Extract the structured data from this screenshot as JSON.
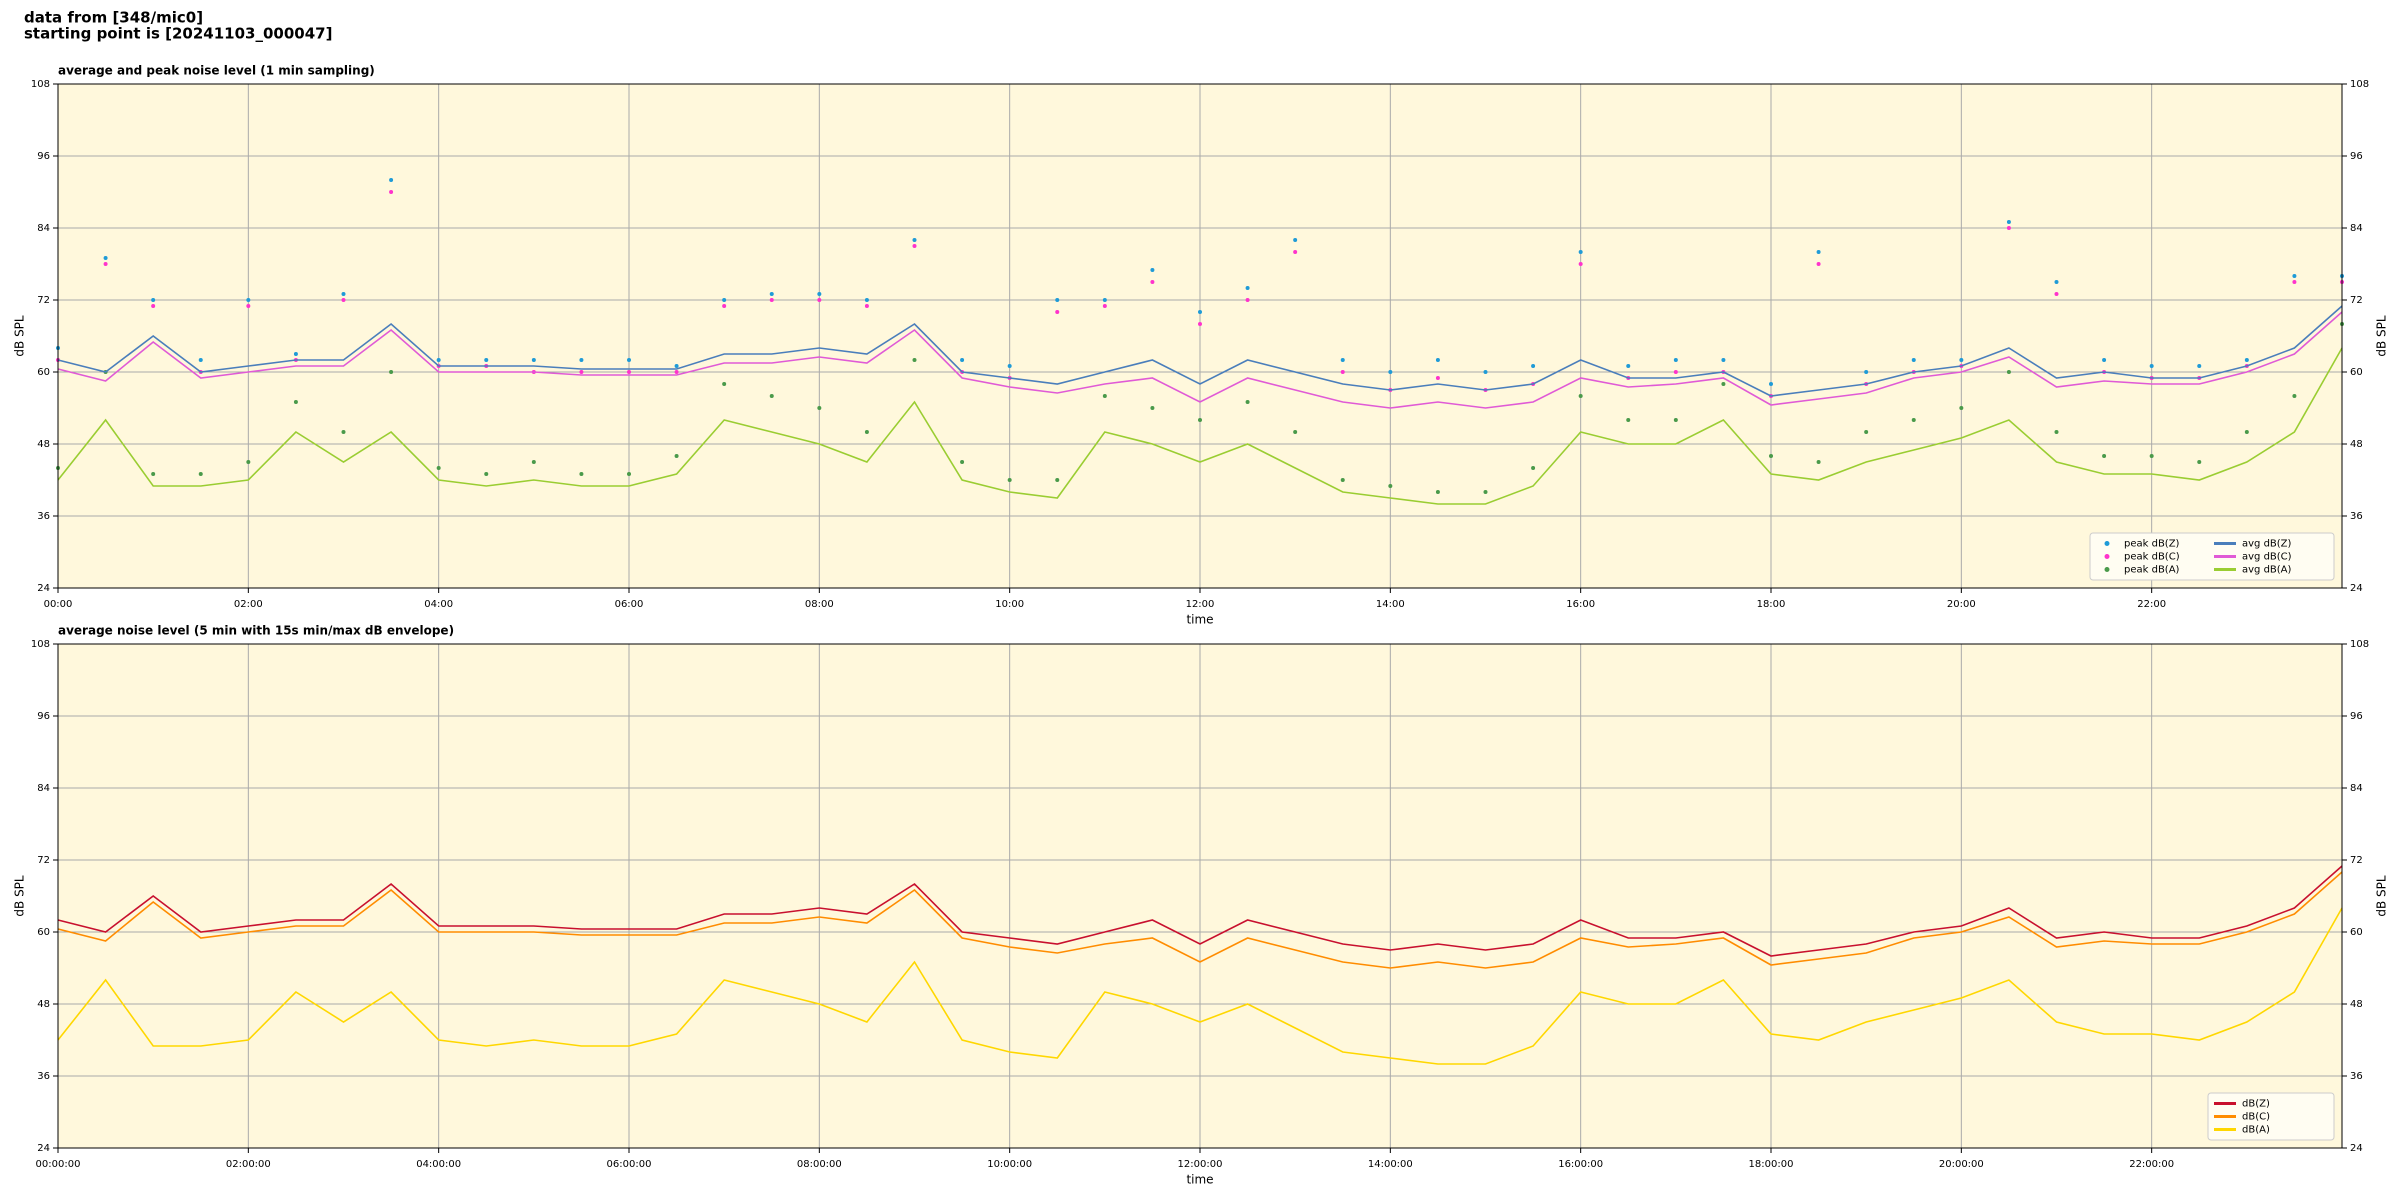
{
  "header": {
    "line1": "data from [348/mic0]",
    "line2": "starting point is [20241103_000047]"
  },
  "chart_data": [
    {
      "type": "line",
      "title": "average and peak noise level (1 min sampling)",
      "xlabel": "time",
      "ylabel": "dB SPL",
      "xlim": [
        0,
        24
      ],
      "xticks": [
        {
          "value": 0,
          "label": "00:00"
        },
        {
          "value": 2,
          "label": "02:00"
        },
        {
          "value": 4,
          "label": "04:00"
        },
        {
          "value": 6,
          "label": "06:00"
        },
        {
          "value": 8,
          "label": "08:00"
        },
        {
          "value": 10,
          "label": "10:00"
        },
        {
          "value": 12,
          "label": "12:00"
        },
        {
          "value": 14,
          "label": "14:00"
        },
        {
          "value": 16,
          "label": "16:00"
        },
        {
          "value": 18,
          "label": "18:00"
        },
        {
          "value": 20,
          "label": "20:00"
        },
        {
          "value": 22,
          "label": "22:00"
        }
      ],
      "ylim": [
        24,
        108
      ],
      "yticks": [
        24,
        36,
        48,
        60,
        72,
        84,
        96,
        108
      ],
      "grid": true,
      "legend": "lower right",
      "legend_ncol": 2,
      "x": [
        0,
        0.5,
        1,
        1.5,
        2,
        2.5,
        3,
        3.5,
        4,
        4.5,
        5,
        5.5,
        6,
        6.5,
        7,
        7.5,
        8,
        8.5,
        9,
        9.5,
        10,
        10.5,
        11,
        11.5,
        12,
        12.5,
        13,
        13.5,
        14,
        14.5,
        15,
        15.5,
        16,
        16.5,
        17,
        17.5,
        18,
        18.5,
        19,
        19.5,
        20,
        20.5,
        21,
        21.5,
        22,
        22.5,
        23,
        23.5,
        24
      ],
      "series": [
        {
          "name": "peak dB(Z)",
          "kind": "scatter",
          "color": "#1f9bd7",
          "values": [
            64,
            79,
            72,
            62,
            72,
            63,
            73,
            92,
            62,
            62,
            62,
            62,
            62,
            61,
            72,
            73,
            73,
            72,
            82,
            62,
            61,
            72,
            72,
            77,
            70,
            74,
            82,
            62,
            60,
            62,
            60,
            61,
            80,
            61,
            62,
            62,
            58,
            80,
            60,
            62,
            62,
            85,
            75,
            62,
            61,
            61,
            62,
            76,
            76
          ]
        },
        {
          "name": "peak dB(C)",
          "kind": "scatter",
          "color": "#ff33cc",
          "values": [
            62,
            78,
            71,
            60,
            71,
            62,
            72,
            90,
            61,
            61,
            60,
            60,
            60,
            60,
            71,
            72,
            72,
            71,
            81,
            60,
            59,
            70,
            71,
            75,
            68,
            72,
            80,
            60,
            57,
            59,
            57,
            58,
            78,
            59,
            60,
            60,
            56,
            78,
            58,
            60,
            61,
            84,
            73,
            60,
            59,
            59,
            61,
            75,
            75
          ]
        },
        {
          "name": "peak dB(A)",
          "kind": "scatter",
          "color": "#4a9a4a",
          "values": [
            44,
            60,
            43,
            43,
            45,
            55,
            50,
            60,
            44,
            43,
            45,
            43,
            43,
            46,
            58,
            56,
            54,
            50,
            62,
            45,
            42,
            42,
            56,
            54,
            52,
            55,
            50,
            42,
            41,
            40,
            40,
            44,
            56,
            52,
            52,
            58,
            46,
            45,
            50,
            52,
            54,
            60,
            50,
            46,
            46,
            45,
            50,
            56,
            68
          ]
        },
        {
          "name": "avg dB(Z)",
          "kind": "line",
          "color": "#4a7ebb",
          "values": [
            62,
            60,
            66,
            60,
            61,
            62,
            62,
            68,
            61,
            61,
            61,
            60.5,
            60.5,
            60.5,
            63,
            63,
            64,
            63,
            68,
            60,
            59,
            58,
            60,
            62,
            58,
            62,
            60,
            58,
            57,
            58,
            57,
            58,
            62,
            59,
            59,
            60,
            56,
            57,
            58,
            60,
            61,
            64,
            59,
            60,
            59,
            59,
            61,
            64,
            71
          ]
        },
        {
          "name": "avg dB(C)",
          "kind": "line",
          "color": "#e05ad6",
          "values": [
            60.5,
            58.5,
            65,
            59,
            60,
            61,
            61,
            67,
            60,
            60,
            60,
            59.5,
            59.5,
            59.5,
            61.5,
            61.5,
            62.5,
            61.5,
            67,
            59,
            57.5,
            56.5,
            58,
            59,
            55,
            59,
            57,
            55,
            54,
            55,
            54,
            55,
            59,
            57.5,
            58,
            59,
            54.5,
            55.5,
            56.5,
            59,
            60,
            62.5,
            57.5,
            58.5,
            58,
            58,
            60,
            63,
            70
          ]
        },
        {
          "name": "avg dB(A)",
          "kind": "line",
          "color": "#9acd32",
          "values": [
            42,
            52,
            41,
            41,
            42,
            50,
            45,
            50,
            42,
            41,
            42,
            41,
            41,
            43,
            52,
            50,
            48,
            45,
            55,
            42,
            40,
            39,
            50,
            48,
            45,
            48,
            44,
            40,
            39,
            38,
            38,
            41,
            50,
            48,
            48,
            52,
            43,
            42,
            45,
            47,
            49,
            52,
            45,
            43,
            43,
            42,
            45,
            50,
            64
          ]
        }
      ]
    },
    {
      "type": "line",
      "title": "average noise level (5 min with 15s min/max dB envelope)",
      "xlabel": "time",
      "ylabel": "dB SPL",
      "xlim": [
        0,
        24
      ],
      "xticks": [
        {
          "value": 0,
          "label": "00:00:00"
        },
        {
          "value": 2,
          "label": "02:00:00"
        },
        {
          "value": 4,
          "label": "04:00:00"
        },
        {
          "value": 6,
          "label": "06:00:00"
        },
        {
          "value": 8,
          "label": "08:00:00"
        },
        {
          "value": 10,
          "label": "10:00:00"
        },
        {
          "value": 12,
          "label": "12:00:00"
        },
        {
          "value": 14,
          "label": "14:00:00"
        },
        {
          "value": 16,
          "label": "16:00:00"
        },
        {
          "value": 18,
          "label": "18:00:00"
        },
        {
          "value": 20,
          "label": "20:00:00"
        },
        {
          "value": 22,
          "label": "22:00:00"
        }
      ],
      "ylim": [
        24,
        108
      ],
      "yticks": [
        24,
        36,
        48,
        60,
        72,
        84,
        96,
        108
      ],
      "grid": true,
      "legend": "lower right",
      "legend_ncol": 1,
      "x": [
        0,
        0.5,
        1,
        1.5,
        2,
        2.5,
        3,
        3.5,
        4,
        4.5,
        5,
        5.5,
        6,
        6.5,
        7,
        7.5,
        8,
        8.5,
        9,
        9.5,
        10,
        10.5,
        11,
        11.5,
        12,
        12.5,
        13,
        13.5,
        14,
        14.5,
        15,
        15.5,
        16,
        16.5,
        17,
        17.5,
        18,
        18.5,
        19,
        19.5,
        20,
        20.5,
        21,
        21.5,
        22,
        22.5,
        23,
        23.5,
        24
      ],
      "series": [
        {
          "name": "dB(Z)",
          "kind": "line",
          "color": "#c8102e",
          "values": [
            62,
            60,
            66,
            60,
            61,
            62,
            62,
            68,
            61,
            61,
            61,
            60.5,
            60.5,
            60.5,
            63,
            63,
            64,
            63,
            68,
            60,
            59,
            58,
            60,
            62,
            58,
            62,
            60,
            58,
            57,
            58,
            57,
            58,
            62,
            59,
            59,
            60,
            56,
            57,
            58,
            60,
            61,
            64,
            59,
            60,
            59,
            59,
            61,
            64,
            71
          ]
        },
        {
          "name": "dB(C)",
          "kind": "line",
          "color": "#ff8c00",
          "values": [
            60.5,
            58.5,
            65,
            59,
            60,
            61,
            61,
            67,
            60,
            60,
            60,
            59.5,
            59.5,
            59.5,
            61.5,
            61.5,
            62.5,
            61.5,
            67,
            59,
            57.5,
            56.5,
            58,
            59,
            55,
            59,
            57,
            55,
            54,
            55,
            54,
            55,
            59,
            57.5,
            58,
            59,
            54.5,
            55.5,
            56.5,
            59,
            60,
            62.5,
            57.5,
            58.5,
            58,
            58,
            60,
            63,
            70
          ]
        },
        {
          "name": "dB(A)",
          "kind": "line",
          "color": "#ffd700",
          "values": [
            42,
            52,
            41,
            41,
            42,
            50,
            45,
            50,
            42,
            41,
            42,
            41,
            41,
            43,
            52,
            50,
            48,
            45,
            55,
            42,
            40,
            39,
            50,
            48,
            45,
            48,
            44,
            40,
            39,
            38,
            38,
            41,
            50,
            48,
            48,
            52,
            43,
            42,
            45,
            47,
            49,
            52,
            45,
            43,
            43,
            42,
            45,
            50,
            64
          ]
        }
      ]
    }
  ]
}
